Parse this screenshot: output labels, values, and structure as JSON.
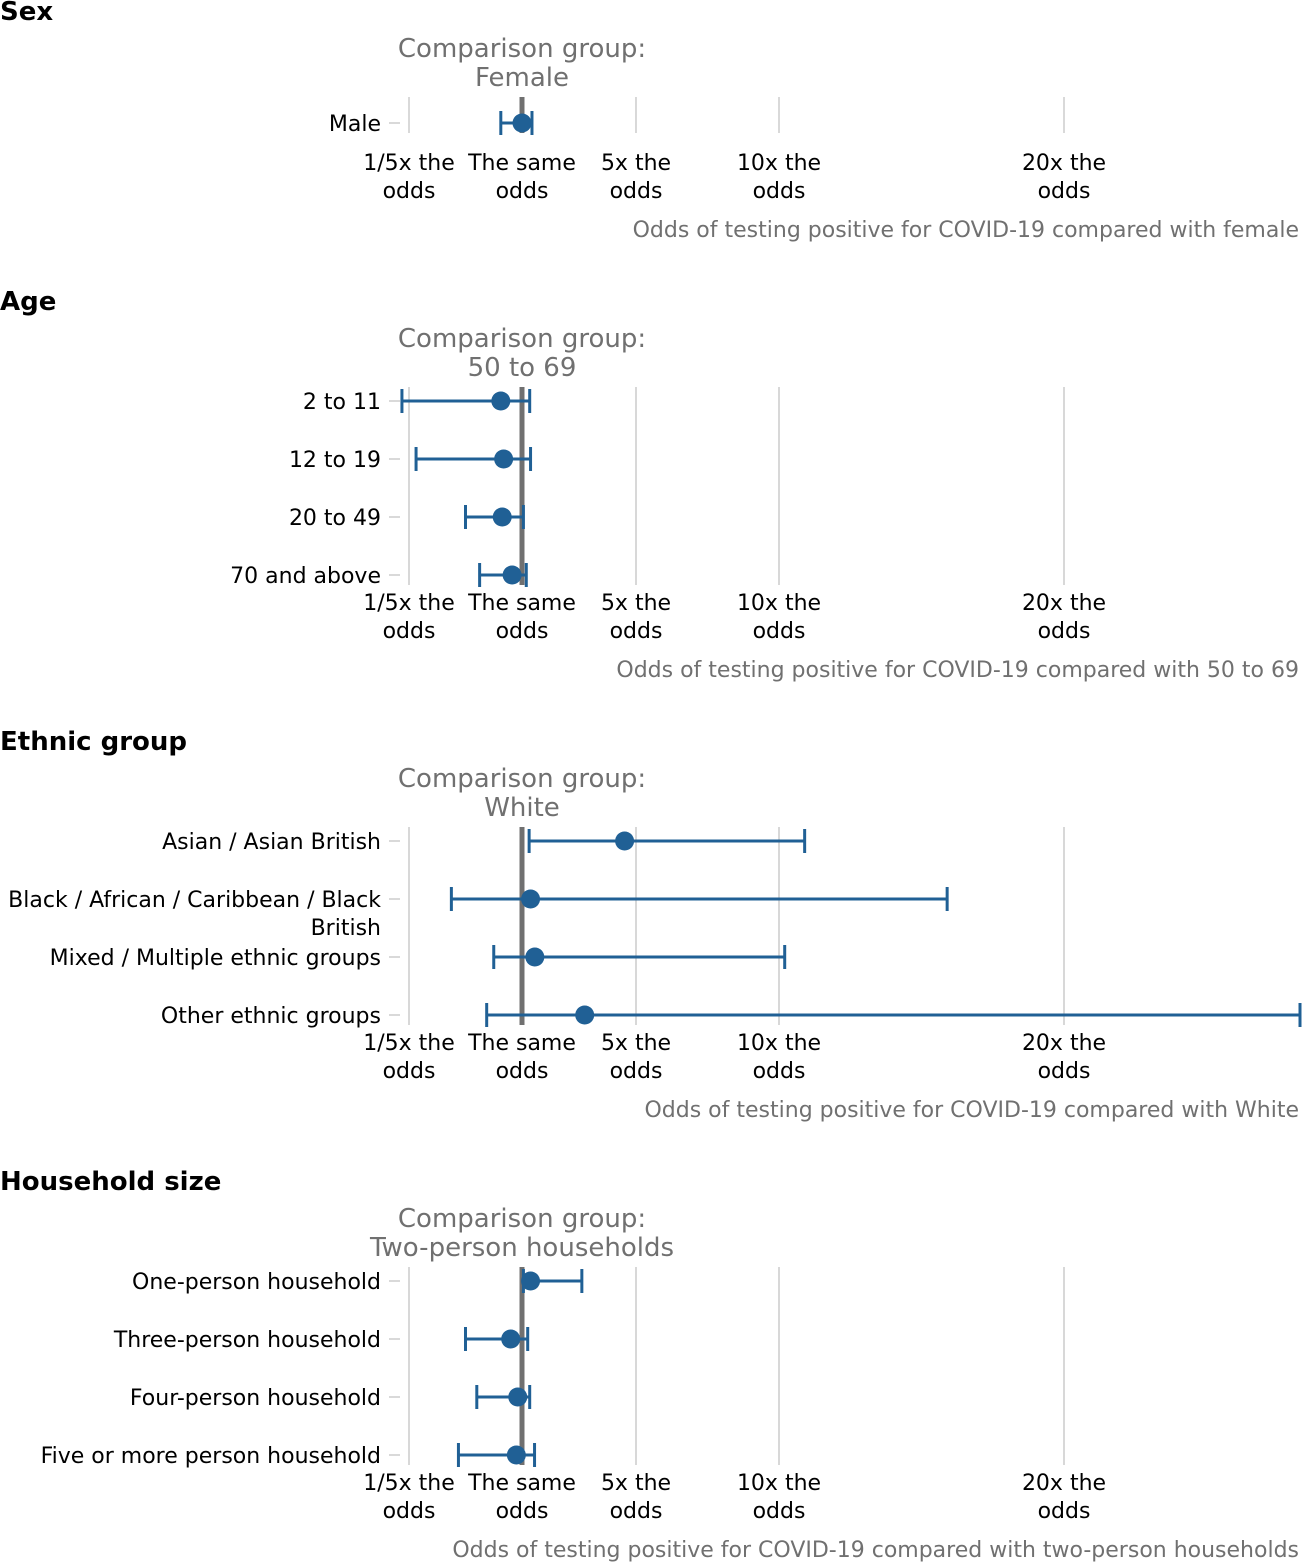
{
  "colors": {
    "marker": "#206095",
    "reference_line": "#707070",
    "gridline": "#cccccc",
    "label_gray": "#707070"
  },
  "tick_values": [
    0.2,
    1,
    5,
    10,
    20
  ],
  "tick_labels": [
    [
      "1/5x the",
      "odds"
    ],
    [
      "The same",
      "odds"
    ],
    [
      "5x the",
      "odds"
    ],
    [
      "10x the",
      "odds"
    ],
    [
      "20x the",
      "odds"
    ]
  ],
  "chart_data": [
    {
      "type": "scatter",
      "title": "Sex",
      "comparison_label": [
        "Comparison group:",
        "Female"
      ],
      "xlabel": "Odds of testing positive for COVID-19 compared with female",
      "categories": [
        [
          "Male"
        ]
      ],
      "estimate": [
        1.0
      ],
      "lower": [
        0.85
      ],
      "upper": [
        1.35
      ]
    },
    {
      "type": "scatter",
      "title": "Age",
      "comparison_label": [
        "Comparison group:",
        "50 to 69"
      ],
      "xlabel": "Odds of testing positive for COVID-19 compared with 50 to 69",
      "categories": [
        [
          "2 to 11"
        ],
        [
          "12 to 19"
        ],
        [
          "20 to 49"
        ],
        [
          "70 and above"
        ]
      ],
      "estimate": [
        0.85,
        0.87,
        0.86,
        0.93
      ],
      "lower": [
        0.15,
        0.25,
        0.6,
        0.7
      ],
      "upper": [
        1.27,
        1.3,
        1.05,
        1.15
      ]
    },
    {
      "type": "scatter",
      "title": "Ethnic group",
      "comparison_label": [
        "Comparison group:",
        "White"
      ],
      "xlabel": "Odds of testing positive for COVID-19 compared with White",
      "categories": [
        [
          "Asian / Asian British"
        ],
        [
          "Black / African / Caribbean / Black",
          "British"
        ],
        [
          "Mixed / Multiple ethnic groups"
        ],
        [
          "Other ethnic groups"
        ]
      ],
      "estimate": [
        4.6,
        1.3,
        1.45,
        3.2
      ],
      "lower": [
        1.25,
        0.5,
        0.8,
        0.75
      ],
      "upper": [
        10.9,
        15.9,
        10.2,
        33.5
      ]
    },
    {
      "type": "scatter",
      "title": "Household size",
      "comparison_label": [
        "Comparison group:",
        "Two-person households"
      ],
      "xlabel": "Odds of testing positive for COVID-19 compared with two-person households",
      "categories": [
        [
          "One-person household"
        ],
        [
          "Three-person household"
        ],
        [
          "Four-person household"
        ],
        [
          "Five or more person household"
        ]
      ],
      "estimate": [
        1.3,
        0.92,
        0.97,
        0.96
      ],
      "lower": [
        1.05,
        0.6,
        0.68,
        0.55
      ],
      "upper": [
        3.1,
        1.2,
        1.27,
        1.44
      ]
    }
  ]
}
